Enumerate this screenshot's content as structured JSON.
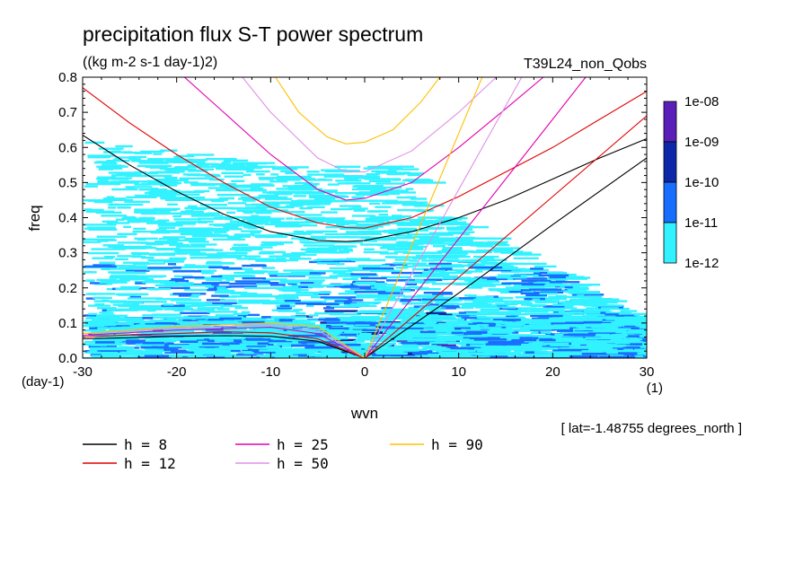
{
  "chart_data": {
    "type": "heatmap",
    "title": "precipitation flux S-T power spectrum",
    "units": "((kg m-2 s-1 day-1)2)",
    "run_label": "T39L24_non_Qobs",
    "xlabel": "wvn",
    "ylabel": "freq",
    "x_units": "(1)",
    "y_units": "(day-1)",
    "footnote": "[ lat=-1.48755 degrees_north ]",
    "xlim": [
      -30,
      30
    ],
    "ylim": [
      0,
      0.8
    ],
    "x_ticks": [
      {
        "value": -30,
        "label": "-30"
      },
      {
        "value": -20,
        "label": "-20"
      },
      {
        "value": -10,
        "label": "-10"
      },
      {
        "value": 0,
        "label": "0"
      },
      {
        "value": 10,
        "label": "10"
      },
      {
        "value": 20,
        "label": "20"
      },
      {
        "value": 30,
        "label": "30"
      }
    ],
    "y_ticks": [
      {
        "value": 0,
        "label": "0.0"
      },
      {
        "value": 0.1,
        "label": "0.1"
      },
      {
        "value": 0.2,
        "label": "0.2"
      },
      {
        "value": 0.3,
        "label": "0.3"
      },
      {
        "value": 0.4,
        "label": "0.4"
      },
      {
        "value": 0.5,
        "label": "0.5"
      },
      {
        "value": 0.6,
        "label": "0.6"
      },
      {
        "value": 0.7,
        "label": "0.7"
      },
      {
        "value": 0.8,
        "label": "0.8"
      }
    ],
    "colorbar": {
      "labels": [
        "1e-08",
        "1e-09",
        "1e-10",
        "1e-11",
        "1e-12"
      ],
      "colors": [
        "#5a1fb8",
        "#0c28a8",
        "#1a6eff",
        "#33f2ff"
      ]
    },
    "series": [
      {
        "name": "h =  8",
        "color": "#000000",
        "points_lower": [
          [
            -30,
            0.055
          ],
          [
            -25,
            0.058
          ],
          [
            -20,
            0.062
          ],
          [
            -15,
            0.064
          ],
          [
            -10,
            0.062
          ],
          [
            -5,
            0.048
          ],
          [
            0,
            0.0
          ]
        ],
        "points_upper": [
          [
            -30,
            0.635
          ],
          [
            -25,
            0.55
          ],
          [
            -20,
            0.475
          ],
          [
            -15,
            0.41
          ],
          [
            -10,
            0.36
          ],
          [
            -5,
            0.335
          ],
          [
            -2,
            0.332
          ],
          [
            0,
            0.335
          ],
          [
            5,
            0.36
          ],
          [
            10,
            0.4
          ],
          [
            15,
            0.45
          ],
          [
            20,
            0.51
          ],
          [
            25,
            0.57
          ],
          [
            30,
            0.625
          ]
        ],
        "points_kelvin": [
          [
            0,
            0.0
          ],
          [
            10,
            0.185
          ],
          [
            20,
            0.38
          ],
          [
            30,
            0.57
          ]
        ]
      },
      {
        "name": "h = 12",
        "color": "#e00000",
        "points_lower": [
          [
            -30,
            0.06
          ],
          [
            -25,
            0.066
          ],
          [
            -20,
            0.07
          ],
          [
            -15,
            0.075
          ],
          [
            -10,
            0.072
          ],
          [
            -5,
            0.055
          ],
          [
            0,
            0.0
          ]
        ],
        "points_upper": [
          [
            -30,
            0.77
          ],
          [
            -25,
            0.67
          ],
          [
            -20,
            0.58
          ],
          [
            -15,
            0.5
          ],
          [
            -10,
            0.43
          ],
          [
            -5,
            0.385
          ],
          [
            -2,
            0.372
          ],
          [
            0,
            0.37
          ],
          [
            5,
            0.4
          ],
          [
            10,
            0.46
          ],
          [
            15,
            0.53
          ],
          [
            20,
            0.6
          ],
          [
            25,
            0.68
          ],
          [
            30,
            0.76
          ]
        ],
        "points_kelvin": [
          [
            0,
            0.0
          ],
          [
            10,
            0.23
          ],
          [
            20,
            0.46
          ],
          [
            30,
            0.69
          ]
        ]
      },
      {
        "name": "h = 25",
        "color": "#e000b0",
        "points_lower": [
          [
            -30,
            0.065
          ],
          [
            -20,
            0.08
          ],
          [
            -10,
            0.088
          ],
          [
            -5,
            0.07
          ],
          [
            0,
            0.0
          ]
        ],
        "points_upper": [
          [
            -20,
            0.82
          ],
          [
            -15,
            0.7
          ],
          [
            -10,
            0.58
          ],
          [
            -5,
            0.48
          ],
          [
            -2,
            0.45
          ],
          [
            0,
            0.455
          ],
          [
            5,
            0.5
          ],
          [
            10,
            0.6
          ],
          [
            15,
            0.71
          ],
          [
            19,
            0.8
          ]
        ],
        "points_kelvin": [
          [
            0,
            0.0
          ],
          [
            10,
            0.34
          ],
          [
            20,
            0.68
          ],
          [
            23.5,
            0.8
          ]
        ]
      },
      {
        "name": "h = 50",
        "color": "#e090e8",
        "points_lower": [
          [
            -30,
            0.07
          ],
          [
            -20,
            0.085
          ],
          [
            -10,
            0.095
          ],
          [
            -5,
            0.08
          ],
          [
            0,
            0.0
          ]
        ],
        "points_upper": [
          [
            -13,
            0.8
          ],
          [
            -10,
            0.7
          ],
          [
            -5,
            0.57
          ],
          [
            -2,
            0.53
          ],
          [
            0,
            0.53
          ],
          [
            5,
            0.59
          ],
          [
            10,
            0.7
          ],
          [
            14,
            0.8
          ]
        ],
        "points_kelvin": [
          [
            0,
            0.0
          ],
          [
            10,
            0.48
          ],
          [
            16.7,
            0.8
          ]
        ]
      },
      {
        "name": "h = 90",
        "color": "#ffc000",
        "points_lower": [
          [
            -30,
            0.07
          ],
          [
            -20,
            0.09
          ],
          [
            -10,
            0.1
          ],
          [
            -5,
            0.09
          ],
          [
            0,
            0.0
          ]
        ],
        "points_upper": [
          [
            -9.5,
            0.8
          ],
          [
            -7,
            0.7
          ],
          [
            -4,
            0.63
          ],
          [
            -2,
            0.61
          ],
          [
            0,
            0.615
          ],
          [
            3,
            0.65
          ],
          [
            6,
            0.73
          ],
          [
            8,
            0.8
          ]
        ],
        "points_kelvin": [
          [
            0,
            0.0
          ],
          [
            10,
            0.64
          ],
          [
            12.5,
            0.8
          ]
        ]
      }
    ],
    "legend_placement": "bottom-left"
  }
}
